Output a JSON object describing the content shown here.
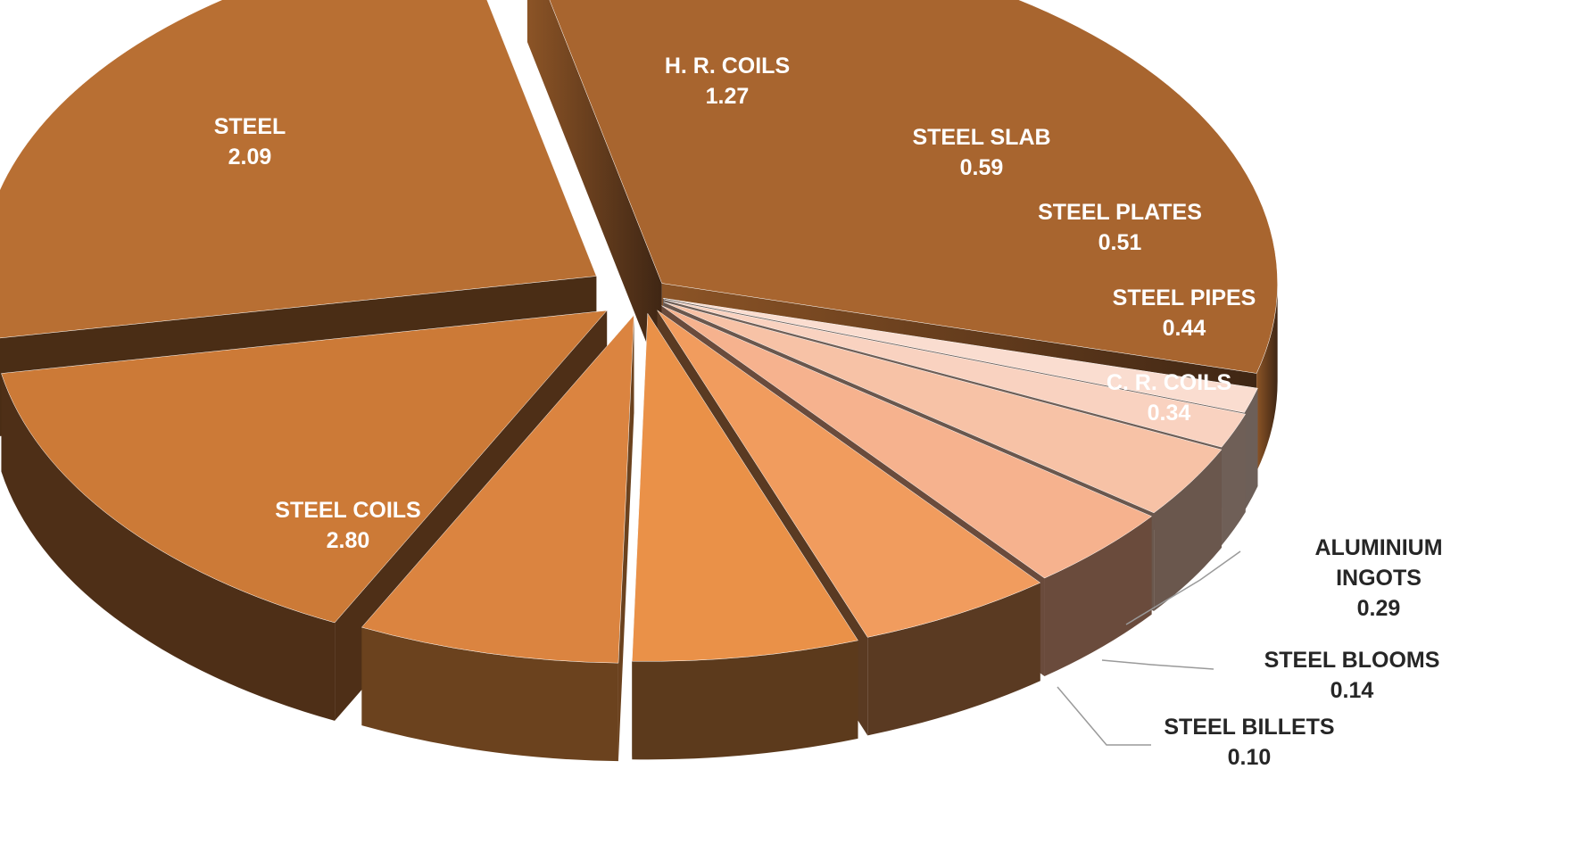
{
  "chart_data": {
    "type": "pie",
    "style": "3d-exploded",
    "legend": "none",
    "slices": [
      {
        "label": "STEEL COILS",
        "value_label": "2.80",
        "value": 2.8,
        "color": "#A8652F",
        "label_color": "#ffffff"
      },
      {
        "label": "STEEL",
        "value_label": "2.09",
        "value": 2.09,
        "color": "#B86F33",
        "label_color": "#ffffff"
      },
      {
        "label": "H. R. COILS",
        "value_label": "1.27",
        "value": 1.27,
        "color": "#CC7A37",
        "label_color": "#ffffff"
      },
      {
        "label": "STEEL SLAB",
        "value_label": "0.59",
        "value": 0.59,
        "color": "#DB8440",
        "label_color": "#ffffff"
      },
      {
        "label": "STEEL PLATES",
        "value_label": "0.51",
        "value": 0.51,
        "color": "#EA9148",
        "label_color": "#ffffff"
      },
      {
        "label": "STEEL PIPES",
        "value_label": "0.44",
        "value": 0.44,
        "color": "#F19C5E",
        "label_color": "#ffffff"
      },
      {
        "label": "C. R. COILS",
        "value_label": "0.34",
        "value": 0.34,
        "color": "#F6B28E",
        "label_color": "#ffffff"
      },
      {
        "label": "ALUMINIUM INGOTS",
        "value_label": "0.29",
        "value": 0.29,
        "color": "#F7C2A6",
        "label_color": "#262626"
      },
      {
        "label": "STEEL BLOOMS",
        "value_label": "0.14",
        "value": 0.14,
        "color": "#F9D2C0",
        "label_color": "#262626"
      },
      {
        "label": "STEEL BILLETS",
        "value_label": "0.10",
        "value": 0.1,
        "color": "#FADDD0",
        "label_color": "#262626"
      }
    ]
  }
}
